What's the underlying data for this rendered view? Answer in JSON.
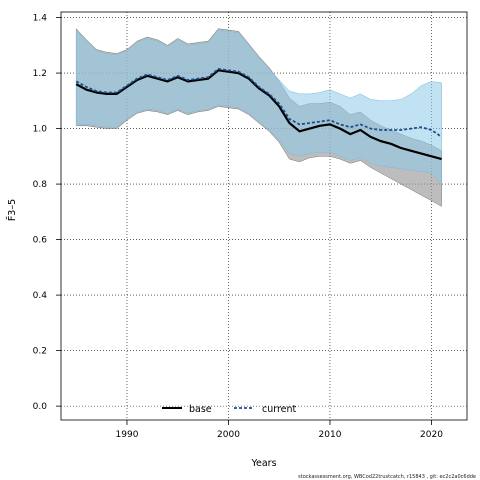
{
  "chart_data": {
    "type": "line",
    "xlabel": "Years",
    "ylabel": "F̄3–5",
    "xlim": [
      1983.5,
      2023.5
    ],
    "ylim": [
      -0.05,
      1.42
    ],
    "x_ticks": [
      1990,
      2000,
      2010,
      2020
    ],
    "y_ticks": [
      0.0,
      0.2,
      0.4,
      0.6,
      0.8,
      1.0,
      1.2,
      1.4
    ],
    "grid": "dotted",
    "legend_position": "bottom-center",
    "x": [
      1985,
      1986,
      1987,
      1988,
      1989,
      1990,
      1991,
      1992,
      1993,
      1994,
      1995,
      1996,
      1997,
      1998,
      1999,
      2000,
      2001,
      2002,
      2003,
      2004,
      2005,
      2006,
      2007,
      2008,
      2009,
      2010,
      2011,
      2012,
      2013,
      2014,
      2015,
      2016,
      2017,
      2018,
      2019,
      2020,
      2021
    ],
    "series": [
      {
        "name": "base",
        "line_style": "solid",
        "color": "#000000",
        "band_color": "#999999",
        "values": [
          1.16,
          1.14,
          1.13,
          1.125,
          1.125,
          1.15,
          1.175,
          1.19,
          1.18,
          1.17,
          1.185,
          1.17,
          1.175,
          1.18,
          1.21,
          1.205,
          1.2,
          1.18,
          1.145,
          1.12,
          1.08,
          1.02,
          0.99,
          1.0,
          1.01,
          1.015,
          1.0,
          0.98,
          0.995,
          0.97,
          0.955,
          0.945,
          0.93,
          0.92,
          0.91,
          0.9,
          0.89
        ],
        "lower": [
          1.01,
          1.01,
          1.005,
          1.0,
          1.0,
          1.03,
          1.055,
          1.065,
          1.06,
          1.05,
          1.065,
          1.05,
          1.06,
          1.065,
          1.08,
          1.075,
          1.07,
          1.05,
          1.02,
          0.99,
          0.95,
          0.89,
          0.88,
          0.895,
          0.9,
          0.9,
          0.89,
          0.875,
          0.885,
          0.86,
          0.84,
          0.82,
          0.8,
          0.78,
          0.76,
          0.74,
          0.72
        ],
        "upper": [
          1.36,
          1.32,
          1.285,
          1.275,
          1.27,
          1.285,
          1.315,
          1.33,
          1.32,
          1.3,
          1.325,
          1.305,
          1.31,
          1.315,
          1.36,
          1.355,
          1.35,
          1.305,
          1.26,
          1.22,
          1.17,
          1.11,
          1.08,
          1.09,
          1.09,
          1.095,
          1.08,
          1.05,
          1.06,
          1.03,
          1.01,
          0.995,
          0.98,
          0.965,
          0.955,
          0.94,
          0.92
        ]
      },
      {
        "name": "current",
        "line_style": "dashed",
        "color": "#1f4e8c",
        "band_color": "#8ecbea",
        "values": [
          1.17,
          1.15,
          1.135,
          1.13,
          1.13,
          1.155,
          1.18,
          1.195,
          1.185,
          1.175,
          1.19,
          1.175,
          1.18,
          1.185,
          1.215,
          1.21,
          1.205,
          1.185,
          1.15,
          1.125,
          1.09,
          1.035,
          1.015,
          1.02,
          1.025,
          1.03,
          1.015,
          1.005,
          1.015,
          1.0,
          0.995,
          0.995,
          0.995,
          1.0,
          1.005,
          0.995,
          0.97
        ],
        "lower": [
          1.01,
          1.015,
          1.01,
          1.005,
          1.005,
          1.035,
          1.06,
          1.07,
          1.065,
          1.055,
          1.07,
          1.055,
          1.065,
          1.07,
          1.085,
          1.08,
          1.075,
          1.055,
          1.025,
          0.995,
          0.96,
          0.91,
          0.9,
          0.91,
          0.915,
          0.915,
          0.9,
          0.885,
          0.895,
          0.875,
          0.865,
          0.86,
          0.855,
          0.85,
          0.845,
          0.84,
          0.8
        ],
        "upper": [
          1.355,
          1.315,
          1.28,
          1.27,
          1.265,
          1.28,
          1.31,
          1.325,
          1.315,
          1.295,
          1.32,
          1.3,
          1.305,
          1.31,
          1.355,
          1.35,
          1.345,
          1.3,
          1.255,
          1.215,
          1.175,
          1.135,
          1.125,
          1.125,
          1.13,
          1.14,
          1.125,
          1.11,
          1.125,
          1.105,
          1.1,
          1.1,
          1.105,
          1.125,
          1.155,
          1.17,
          1.165
        ]
      }
    ]
  },
  "footer": "stockassessment.org, WBCod22trustcatch, r15843 , git: ec2c2a0c6dde"
}
